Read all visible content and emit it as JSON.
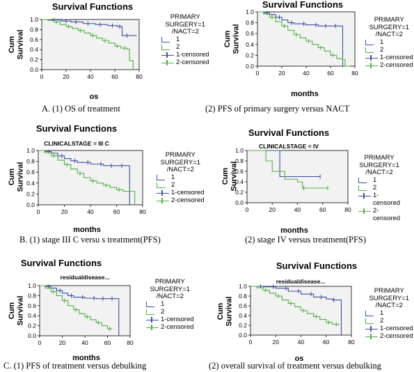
{
  "colors": {
    "primary_surgery": "#3b4fa3",
    "nact": "#4ab43c",
    "plot_bg": "#f2f2f2",
    "axis": "#000000"
  },
  "captions": {
    "A": "A.   (1) OS of treatment",
    "A2": "(2) PFS of primary surgery versus NACT",
    "B": "B.   (1) stage III C versu s treatment(PFS)",
    "B2": "(2) stage IV versus treatment(PFS)",
    "C": "C.   (1) PFS of treatment versus debulking",
    "C2": "(2) overall survival of treatment versus debulking"
  },
  "legend_labels": {
    "title_1": "PRIMARY",
    "title_2": "SURGERY=1",
    "title_3": "/NACT=2",
    "item_1": "1",
    "item_2": "2",
    "item_1c": "1-censored",
    "item_2c": "2-censored",
    "item_1c_a": "1-",
    "item_1c_b": "censored",
    "item_2c_a": "2-",
    "item_2c_b": "censored"
  },
  "chart_data": [
    {
      "id": "A1",
      "type": "line",
      "title": "Survival Functions",
      "subtitle": "",
      "xlabel": "os",
      "ylabel": "Cum Survival",
      "xlim": [
        0,
        80
      ],
      "ylim": [
        0,
        1.0
      ],
      "xticks": [
        0,
        20,
        40,
        60,
        80
      ],
      "yticks": [
        0.0,
        0.2,
        0.4,
        0.6,
        0.8,
        1.0
      ],
      "legend": "right",
      "grid": false,
      "series": [
        {
          "name": "1",
          "x": [
            0,
            8,
            16,
            24,
            34,
            44,
            54,
            62,
            66,
            71,
            78
          ],
          "y": [
            1.0,
            0.99,
            0.97,
            0.95,
            0.92,
            0.9,
            0.88,
            0.86,
            0.68,
            0.68,
            0.68
          ],
          "censored_x": [
            10,
            20,
            28,
            38,
            48,
            58,
            64,
            70
          ]
        },
        {
          "name": "2",
          "x": [
            0,
            5,
            10,
            15,
            20,
            25,
            30,
            35,
            40,
            45,
            50,
            55,
            60,
            65,
            70,
            72,
            75
          ],
          "y": [
            1.0,
            0.98,
            0.95,
            0.9,
            0.86,
            0.82,
            0.78,
            0.73,
            0.68,
            0.63,
            0.58,
            0.53,
            0.47,
            0.43,
            0.41,
            0.18,
            0.0
          ],
          "censored_x": [
            12,
            22,
            32,
            42,
            52,
            62,
            68
          ]
        }
      ]
    },
    {
      "id": "A2",
      "type": "line",
      "title": "Survival Functions",
      "subtitle": "",
      "xlabel": "months",
      "ylabel": "Cum Survival",
      "xlim": [
        0,
        80
      ],
      "ylim": [
        0,
        1.0
      ],
      "xticks": [
        0,
        20,
        40,
        60,
        80
      ],
      "yticks": [
        0.0,
        0.2,
        0.4,
        0.6,
        0.8,
        1.0
      ],
      "legend": "right",
      "grid": false,
      "series": [
        {
          "name": "1",
          "x": [
            0,
            5,
            10,
            15,
            20,
            25,
            30,
            40,
            50,
            60,
            68,
            70
          ],
          "y": [
            1.0,
            0.98,
            0.95,
            0.9,
            0.85,
            0.8,
            0.78,
            0.76,
            0.74,
            0.74,
            0.74,
            0.0
          ],
          "censored_x": [
            8,
            18,
            28,
            38,
            48,
            56,
            64
          ]
        },
        {
          "name": "2",
          "x": [
            0,
            5,
            10,
            15,
            20,
            25,
            30,
            35,
            40,
            45,
            50,
            55,
            60,
            65,
            70,
            72,
            76
          ],
          "y": [
            1.0,
            0.96,
            0.9,
            0.82,
            0.74,
            0.66,
            0.58,
            0.52,
            0.46,
            0.4,
            0.34,
            0.28,
            0.2,
            0.14,
            0.12,
            0.0,
            0.0
          ],
          "censored_x": [
            12,
            22,
            32,
            42,
            52,
            62,
            70
          ]
        }
      ]
    },
    {
      "id": "B1",
      "type": "line",
      "title": "Survival Functions",
      "subtitle": "CLINICALSTAGE = III C",
      "xlabel": "months",
      "ylabel": "Cum Survival",
      "xlim": [
        0,
        80
      ],
      "ylim": [
        0,
        1.0
      ],
      "xticks": [
        0,
        20,
        40,
        60,
        80
      ],
      "yticks": [
        0.0,
        0.2,
        0.4,
        0.6,
        0.8,
        1.0
      ],
      "legend": "right",
      "grid": false,
      "series": [
        {
          "name": "1",
          "x": [
            0,
            5,
            10,
            15,
            20,
            25,
            30,
            40,
            50,
            60,
            68,
            70
          ],
          "y": [
            1.0,
            0.98,
            0.95,
            0.9,
            0.85,
            0.81,
            0.78,
            0.75,
            0.72,
            0.72,
            0.72,
            0.0
          ],
          "censored_x": [
            8,
            18,
            28,
            38,
            48,
            56,
            64
          ]
        },
        {
          "name": "2",
          "x": [
            0,
            5,
            10,
            15,
            20,
            25,
            30,
            35,
            40,
            45,
            50,
            55,
            60,
            65,
            70,
            74
          ],
          "y": [
            1.0,
            0.96,
            0.9,
            0.82,
            0.74,
            0.66,
            0.58,
            0.5,
            0.44,
            0.4,
            0.36,
            0.32,
            0.28,
            0.25,
            0.25,
            0.0
          ],
          "censored_x": [
            12,
            22,
            32,
            42,
            52,
            62,
            70
          ]
        }
      ]
    },
    {
      "id": "B2",
      "type": "line",
      "title": "Survival Functions",
      "subtitle": "CLINICALSTAGE = IV",
      "xlabel": "months",
      "ylabel": "Cum Survival",
      "xlim": [
        0,
        80
      ],
      "ylim": [
        0,
        1.0
      ],
      "xticks": [
        0,
        20,
        40,
        60,
        80
      ],
      "yticks": [
        0.0,
        0.2,
        0.4,
        0.6,
        0.8,
        1.0
      ],
      "legend": "right",
      "grid": false,
      "series": [
        {
          "name": "1",
          "x": [
            0,
            10,
            20,
            26,
            58
          ],
          "y": [
            1.0,
            1.0,
            1.0,
            0.5,
            0.5
          ],
          "censored_x": [
            58
          ]
        },
        {
          "name": "2",
          "x": [
            0,
            10,
            15,
            20,
            30,
            40,
            44,
            64
          ],
          "y": [
            1.0,
            1.0,
            0.8,
            0.6,
            0.45,
            0.4,
            0.28,
            0.28
          ],
          "censored_x": [
            45,
            64
          ]
        }
      ]
    },
    {
      "id": "C1",
      "type": "line",
      "title": "Survival Functions",
      "subtitle": "residualdisease...",
      "xlabel": "months",
      "ylabel": "Cum Survival",
      "xlim": [
        0,
        80
      ],
      "ylim": [
        0,
        1.0
      ],
      "xticks": [
        0,
        20,
        40,
        60,
        80
      ],
      "yticks": [
        0.0,
        0.2,
        0.4,
        0.6,
        0.8,
        1.0
      ],
      "legend": "right",
      "grid": false,
      "series": [
        {
          "name": "1",
          "x": [
            0,
            5,
            10,
            15,
            20,
            25,
            30,
            40,
            50,
            60,
            68,
            70
          ],
          "y": [
            1.0,
            0.98,
            0.95,
            0.9,
            0.85,
            0.8,
            0.77,
            0.75,
            0.74,
            0.74,
            0.74,
            0.0
          ],
          "censored_x": [
            8,
            18,
            28,
            38,
            48,
            56,
            64
          ]
        },
        {
          "name": "2",
          "x": [
            0,
            5,
            10,
            15,
            20,
            25,
            30,
            35,
            40,
            45,
            50,
            55,
            60,
            64
          ],
          "y": [
            1.0,
            0.95,
            0.88,
            0.8,
            0.7,
            0.6,
            0.52,
            0.44,
            0.38,
            0.32,
            0.26,
            0.2,
            0.14,
            0.14
          ],
          "censored_x": [
            12,
            22,
            32,
            42,
            52,
            62
          ]
        }
      ]
    },
    {
      "id": "C2",
      "type": "line",
      "title": "Survival Functions",
      "subtitle": "residualdisease...",
      "xlabel": "os",
      "ylabel": "Cum Survival",
      "xlim": [
        0,
        80
      ],
      "ylim": [
        0,
        1.0
      ],
      "xticks": [
        0,
        20,
        40,
        60,
        80
      ],
      "yticks": [
        0.0,
        0.2,
        0.4,
        0.6,
        0.8,
        1.0
      ],
      "legend": "right",
      "grid": false,
      "series": [
        {
          "name": "1",
          "x": [
            0,
            10,
            20,
            30,
            40,
            50,
            60,
            65,
            70,
            72
          ],
          "y": [
            1.0,
            0.99,
            0.96,
            0.9,
            0.84,
            0.78,
            0.74,
            0.72,
            0.72,
            0.0
          ],
          "censored_x": [
            8,
            18,
            28,
            38,
            48,
            56,
            66
          ]
        },
        {
          "name": "2",
          "x": [
            0,
            5,
            10,
            15,
            20,
            25,
            30,
            35,
            40,
            45,
            50,
            55,
            60,
            65,
            70
          ],
          "y": [
            1.0,
            0.97,
            0.92,
            0.86,
            0.8,
            0.72,
            0.65,
            0.58,
            0.5,
            0.44,
            0.38,
            0.32,
            0.26,
            0.22,
            0.2
          ],
          "censored_x": [
            12,
            22,
            32,
            42,
            52,
            62,
            68
          ]
        }
      ]
    }
  ]
}
